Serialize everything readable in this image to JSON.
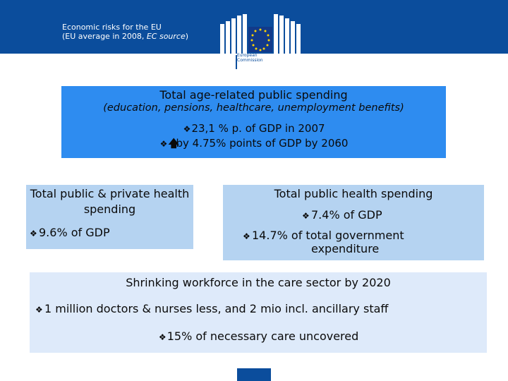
{
  "header": {
    "line1": "Economic risks for the EU",
    "line2_prefix": "(EU average in 2008, ",
    "line2_source": "EC source",
    "line2_suffix": ")",
    "logo_line1": "European",
    "logo_line2": "Commission",
    "band_color": "#0b4d9c"
  },
  "top_box": {
    "title": "Total age-related public spending",
    "subtitle": "(education, pensions, healthcare, unemployment benefits)",
    "bullet1": "23,1 % p. of GDP in 2007",
    "bullet2": "by 4.75% points of GDP by 2060",
    "bullet2_icon": "up-arrow-icon",
    "bg_color": "#2e8cf0"
  },
  "left_box": {
    "title": "Total public & private health spending",
    "bullet1": "9.6% of GDP",
    "bg_color": "#b5d3f1"
  },
  "right_box": {
    "title": "Total public health spending",
    "bullet1": "7.4% of GDP",
    "bullet2_line1": "14.7% of total government",
    "bullet2_line2": "expenditure",
    "bg_color": "#b5d3f1"
  },
  "bottom_box": {
    "title": "Shrinking workforce in the care sector by 2020",
    "bullet1": "1 million doctors & nurses less, and 2 mio incl. ancillary staff",
    "bullet2": "15% of necessary care uncovered",
    "bg_color": "#deeafa"
  },
  "bullet_glyph": "❖"
}
